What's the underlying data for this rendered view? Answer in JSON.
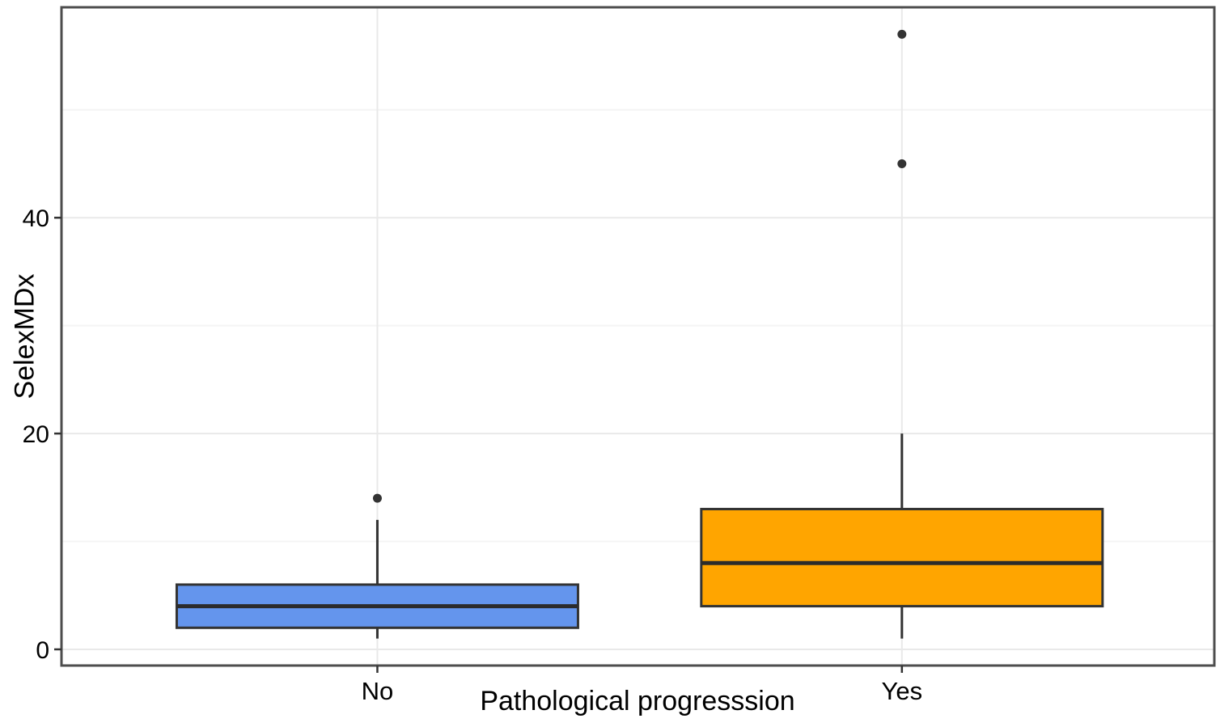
{
  "chart_data": {
    "type": "boxplot",
    "title": "",
    "xlabel": "Pathological progresssion",
    "ylabel": "SelexMDx",
    "categories": [
      "No",
      "Yes"
    ],
    "series": [
      {
        "name": "No",
        "fill": "#6495ED",
        "whisker_low": 1,
        "q1": 2,
        "median": 4,
        "q3": 6,
        "whisker_high": 12,
        "outliers": [
          14
        ]
      },
      {
        "name": "Yes",
        "fill": "#FFA500",
        "whisker_low": 1,
        "q1": 4,
        "median": 8,
        "q3": 13,
        "whisker_high": 20,
        "outliers": [
          45,
          57
        ]
      }
    ],
    "ylim": [
      -1.5,
      59.5
    ],
    "yticks": [
      0,
      20,
      40
    ],
    "yticks_minor": [
      10,
      30,
      50
    ],
    "grid": "horizontal major+minor, vertical line at each category center",
    "legend": "none"
  },
  "colors": {
    "background": "#ffffff",
    "panel_border": "#4d4d4d",
    "grid_major": "#e9e9e9",
    "grid_minor": "#f4f4f4",
    "box_stroke": "#333333",
    "median_stroke": "#2b2b2b",
    "outlier": "#333333",
    "tick": "#333333",
    "text": "#000000"
  }
}
